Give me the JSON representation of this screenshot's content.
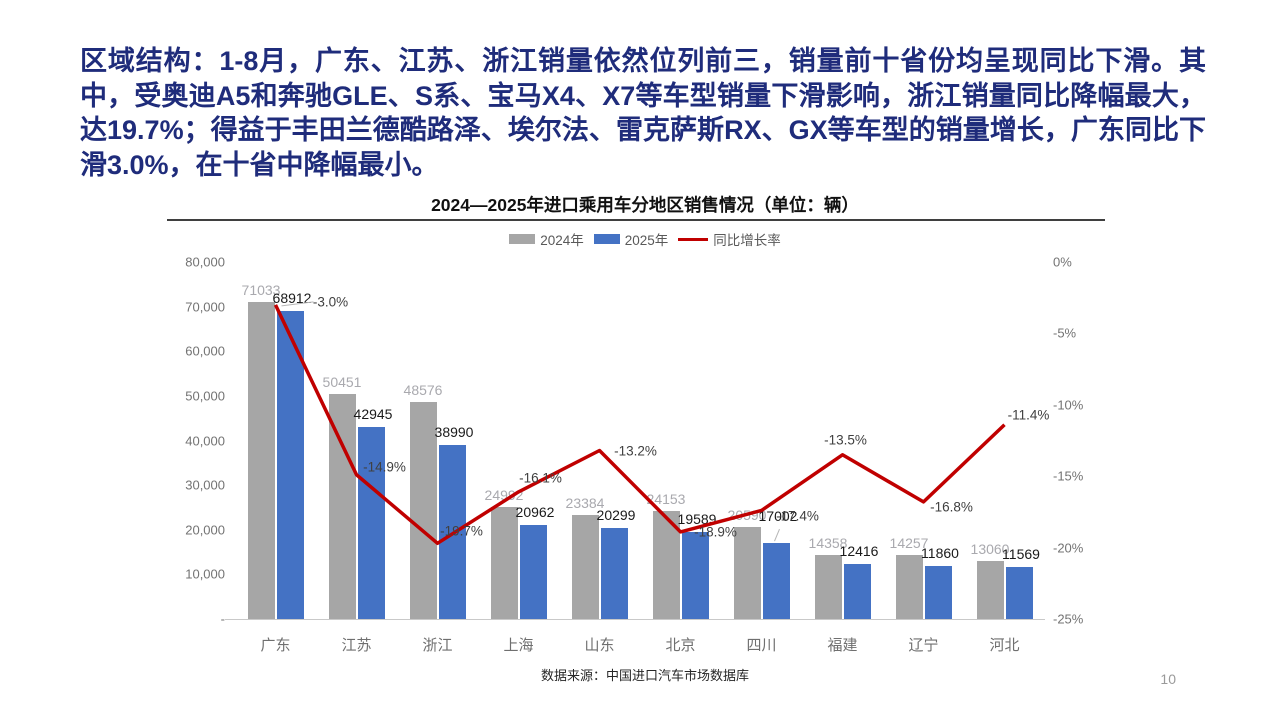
{
  "page": {
    "number": "10"
  },
  "header": {
    "text": "区域结构：1-8月，广东、江苏、浙江销量依然位列前三，销量前十省份均呈现同比下滑。其中，受奥迪A5和奔驰GLE、S系、宝马X4、X7等车型销量下滑影响，浙江销量同比降幅最大，达19.7%；得益于丰田兰德酷路泽、埃尔法、雷克萨斯RX、GX等车型的销量增长，广东同比下滑3.0%，在十省中降幅最小。"
  },
  "source": "数据来源：中国进口汽车市场数据库",
  "colors": {
    "headline": "#1F2C7B",
    "bar_2024": "#A6A6A6",
    "bar_2025": "#4472C4",
    "growth_line": "#C00000",
    "axis_text": "#737373"
  },
  "chart_data": {
    "type": "bar",
    "title": "2024—2025年进口乘用车分地区销售情况（单位：辆）",
    "categories": [
      "广东",
      "江苏",
      "浙江",
      "上海",
      "山东",
      "北京",
      "四川",
      "福建",
      "辽宁",
      "河北"
    ],
    "series": [
      {
        "name": "2024年",
        "type": "bar",
        "color": "#A6A6A6",
        "values": [
          71033,
          50451,
          48576,
          24992,
          23384,
          24153,
          20590,
          14358,
          14257,
          13060
        ]
      },
      {
        "name": "2025年",
        "type": "bar",
        "color": "#4472C4",
        "values": [
          68912,
          42945,
          38990,
          20962,
          20299,
          19589,
          17002,
          12416,
          11860,
          11569
        ]
      },
      {
        "name": "同比增长率",
        "type": "line",
        "color": "#C00000",
        "axis": "right",
        "values": [
          -3.0,
          -14.9,
          -19.7,
          -16.1,
          -13.2,
          -18.9,
          -17.4,
          -13.5,
          -16.8,
          -11.4
        ],
        "labels": [
          "-3.0%",
          "-14.9%",
          "-19.7%",
          "-16.1%",
          "-13.2%",
          "-18.9%",
          "-17.4%",
          "-13.5%",
          "-16.8%",
          "-11.4%"
        ]
      }
    ],
    "left_axis": {
      "min": 0,
      "max": 80000,
      "ticks": [
        "80,000",
        "70,000",
        "60,000",
        "50,000",
        "40,000",
        "30,000",
        "20,000",
        "10,000",
        "-"
      ]
    },
    "right_axis": {
      "min": -25,
      "max": 0,
      "ticks": [
        "0%",
        "-5%",
        "-10%",
        "-15%",
        "-20%",
        "-25%"
      ]
    },
    "legend_position": "top",
    "grid": false
  }
}
